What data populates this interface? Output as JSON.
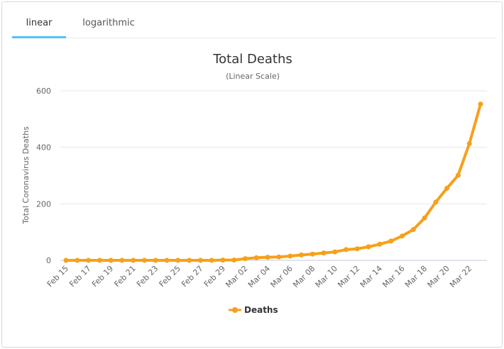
{
  "tabs": [
    {
      "label": "linear",
      "active": true
    },
    {
      "label": "logarithmic",
      "active": false
    }
  ],
  "colors": {
    "series": "#f7a01a",
    "tab_underline": "#4fc3f7",
    "grid": "#e6e6e6"
  },
  "chart_data": {
    "type": "line",
    "title": "Total Deaths",
    "subtitle": "(Linear Scale)",
    "ylabel": "Total Coronavirus Deaths",
    "xlabel": "",
    "ylim": [
      0,
      600
    ],
    "yticks": [
      0,
      200,
      400,
      600
    ],
    "grid": true,
    "legend_position": "bottom-center",
    "x": [
      "Feb 15",
      "Feb 16",
      "Feb 17",
      "Feb 18",
      "Feb 19",
      "Feb 20",
      "Feb 21",
      "Feb 22",
      "Feb 23",
      "Feb 24",
      "Feb 25",
      "Feb 26",
      "Feb 27",
      "Feb 28",
      "Feb 29",
      "Mar 01",
      "Mar 02",
      "Mar 03",
      "Mar 04",
      "Mar 05",
      "Mar 06",
      "Mar 07",
      "Mar 08",
      "Mar 09",
      "Mar 10",
      "Mar 11",
      "Mar 12",
      "Mar 13",
      "Mar 14",
      "Mar 15",
      "Mar 16",
      "Mar 17",
      "Mar 18",
      "Mar 19",
      "Mar 20",
      "Mar 21",
      "Mar 22",
      "Mar 23"
    ],
    "xtick_labels": [
      "Feb 15",
      "Feb 17",
      "Feb 19",
      "Feb 21",
      "Feb 23",
      "Feb 25",
      "Feb 27",
      "Feb 29",
      "Mar 02",
      "Mar 04",
      "Mar 06",
      "Mar 08",
      "Mar 10",
      "Mar 12",
      "Mar 14",
      "Mar 16",
      "Mar 18",
      "Mar 20",
      "Mar 22"
    ],
    "series": [
      {
        "name": "Deaths",
        "color": "#f7a01a",
        "values": [
          0,
          0,
          0,
          0,
          0,
          0,
          0,
          0,
          0,
          0,
          0,
          0,
          0,
          0,
          1,
          1,
          6,
          9,
          11,
          12,
          15,
          19,
          22,
          26,
          30,
          38,
          41,
          48,
          57,
          68,
          86,
          109,
          150,
          206,
          255,
          301,
          413,
          553
        ]
      }
    ]
  }
}
